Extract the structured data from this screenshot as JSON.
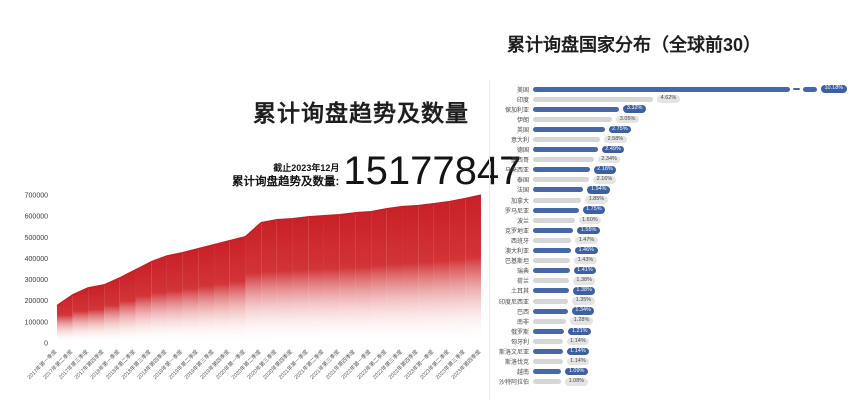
{
  "page": {
    "background": "#ffffff"
  },
  "chart_data": [
    {
      "type": "area",
      "title": "累计询盘趋势及数量",
      "annotation": {
        "asof": "截止2023年12月",
        "label": "累计询盘趋势及数量:",
        "value": "15177847"
      },
      "x": [
        "2017年第一季度",
        "2017年第二季度",
        "2017年第三季度",
        "2017年第四季度",
        "2018年第一季度",
        "2018年第二季度",
        "2018年第三季度",
        "2018年第四季度",
        "2019年第一季度",
        "2019年第二季度",
        "2019年第三季度",
        "2019年第四季度",
        "2020年第一季度",
        "2020年第二季度",
        "2020年第三季度",
        "2020年第四季度",
        "2021年第一季度",
        "2021年第二季度",
        "2021年第三季度",
        "2021年第四季度",
        "2022年第一季度",
        "2022年第二季度",
        "2022年第三季度",
        "2022年第四季度",
        "2023年第一季度",
        "2023年第二季度",
        "2023年第三季度",
        "2023年第四季度"
      ],
      "values": [
        177000,
        228000,
        261000,
        275000,
        308000,
        346000,
        384000,
        412000,
        427000,
        446000,
        465000,
        484000,
        503000,
        569000,
        583000,
        588000,
        597000,
        602000,
        607000,
        616000,
        621000,
        635000,
        645000,
        650000,
        659000,
        669000,
        683000,
        700000
      ],
      "xlabel": "",
      "ylabel": "",
      "ylim": [
        0,
        700000
      ],
      "yticks": [
        0,
        100000,
        200000,
        300000,
        400000,
        500000,
        600000,
        700000
      ],
      "grid": false,
      "legend": null,
      "area_color": "#c92027",
      "area_mid_color": "#d23438",
      "line_color": "#c21f27"
    },
    {
      "type": "bar",
      "orientation": "horizontal",
      "title": "累计询盘国家分布（全球前30）",
      "categories": [
        "美国",
        "印度",
        "保加利亚",
        "伊朗",
        "英国",
        "意大利",
        "德国",
        "墨西哥",
        "马来西亚",
        "泰国",
        "法国",
        "加拿大",
        "罗马尼亚",
        "波兰",
        "克罗地亚",
        "西班牙",
        "澳大利亚",
        "巴基斯坦",
        "瑞典",
        "荷兰",
        "土耳其",
        "印度尼西亚",
        "巴西",
        "南非",
        "俄罗斯",
        "匈牙利",
        "斯洛文尼亚",
        "斯洛伐克",
        "越南",
        "沙特阿拉伯"
      ],
      "values": [
        10.18,
        4.62,
        3.32,
        3.05,
        2.75,
        2.58,
        2.49,
        2.34,
        2.18,
        2.16,
        1.94,
        1.85,
        1.75,
        1.6,
        1.55,
        1.47,
        1.46,
        1.43,
        1.41,
        1.38,
        1.38,
        1.35,
        1.34,
        1.28,
        1.21,
        1.14,
        1.14,
        1.14,
        1.09,
        1.08
      ],
      "value_suffix": "%",
      "broken_bar_index": 0,
      "bar_color_odd_rows": "#4668ab",
      "bar_color_even_rows": "#d6d6d6",
      "badge_color_blue": "#3d5fa3",
      "badge_color_gray": "#e4e4e4",
      "legend": null,
      "grid": false
    }
  ]
}
